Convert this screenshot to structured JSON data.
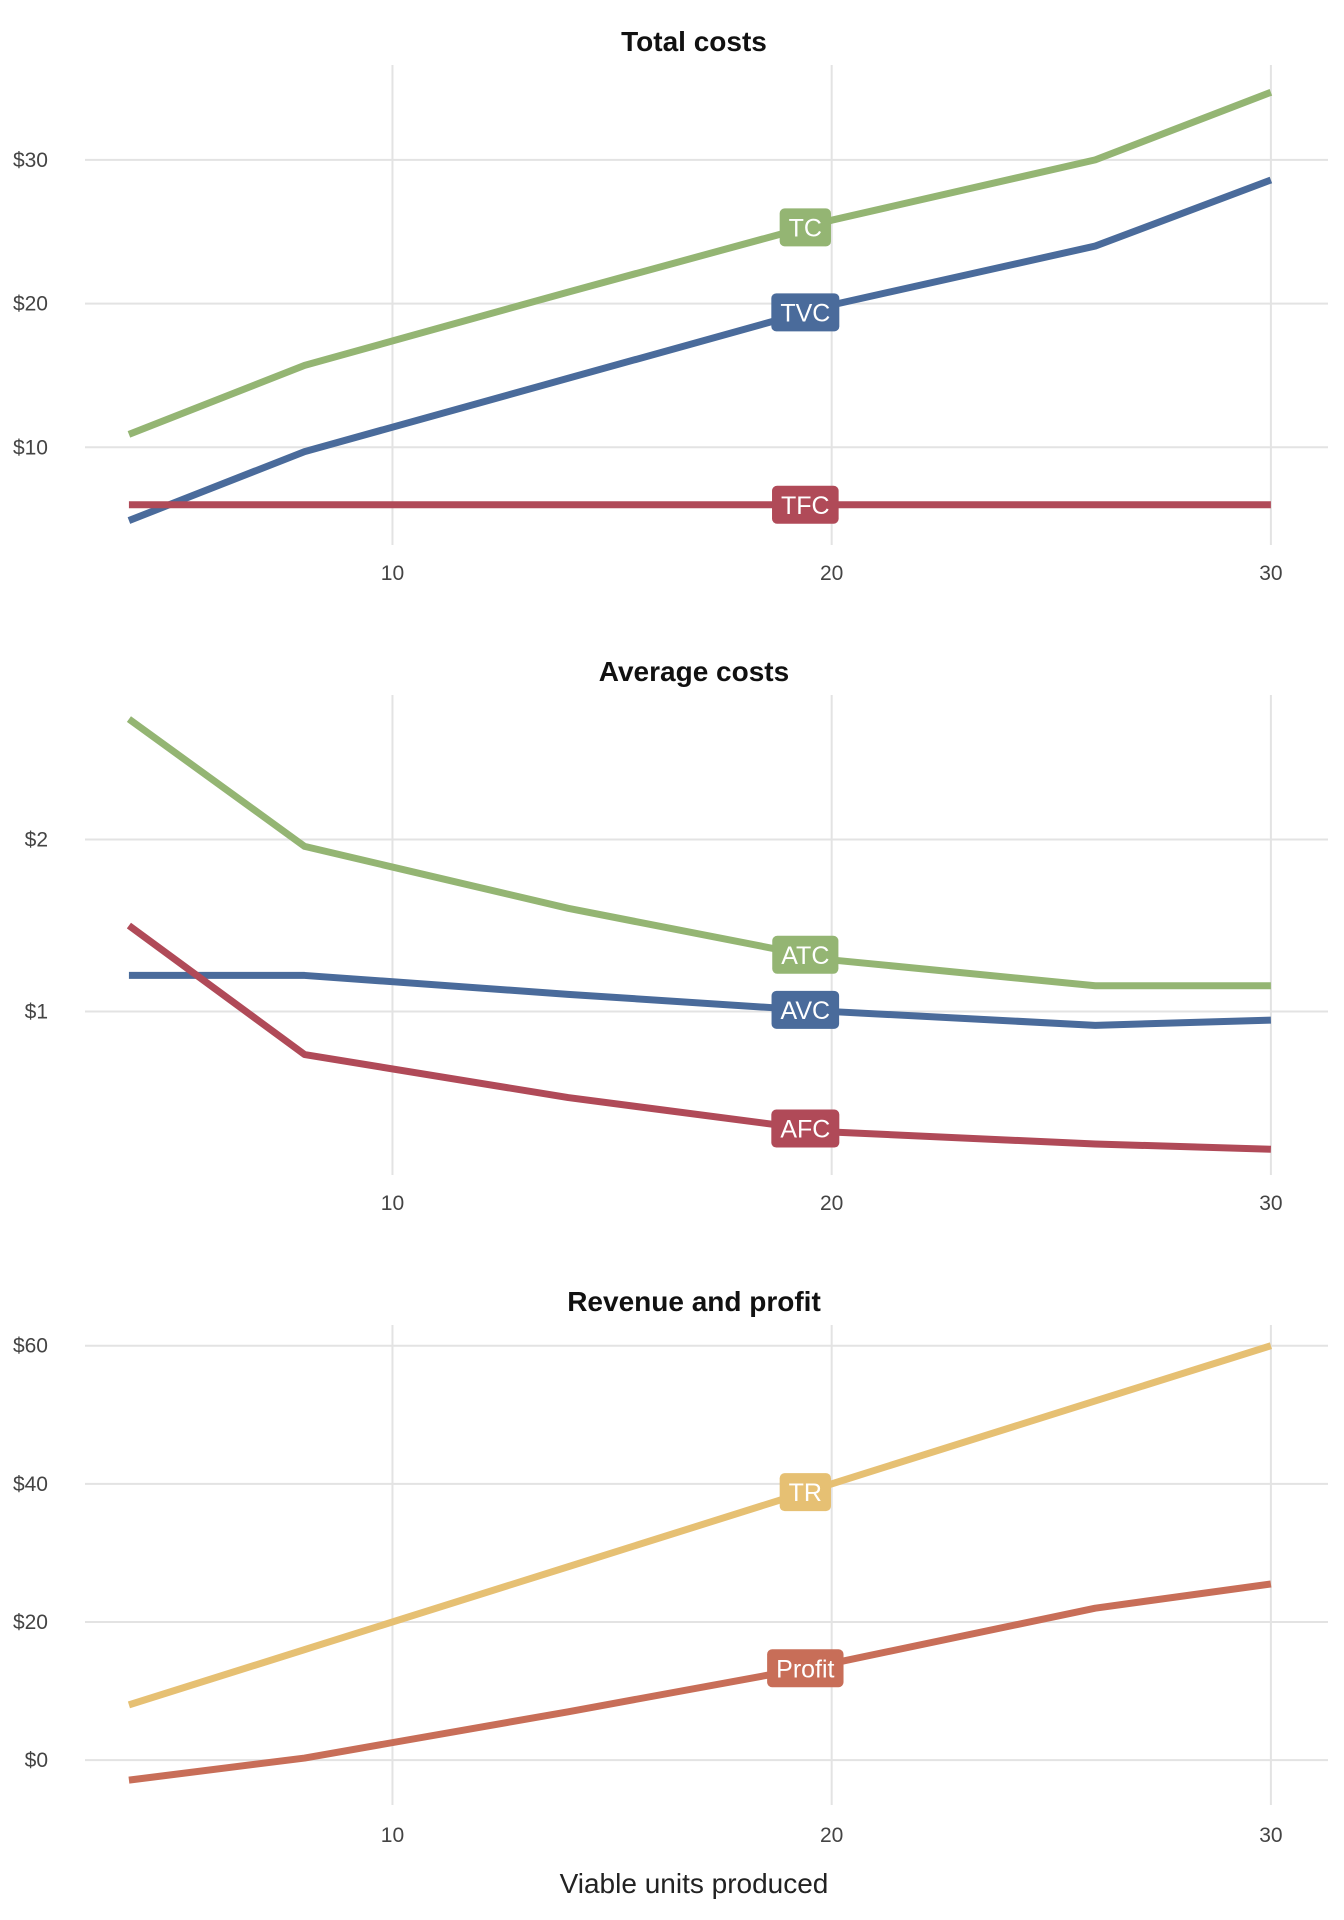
{
  "xlabel": "Viable units produced",
  "colors": {
    "green": "#94b573",
    "blue": "#4a6b9b",
    "red": "#b04a58",
    "yellow": "#e6c073",
    "orange": "#c86e58"
  },
  "chart_data": [
    {
      "type": "line",
      "title": "Total costs",
      "xlim": [
        3,
        31.3
      ],
      "ylim": [
        3.2,
        36.6
      ],
      "xticks": [
        10,
        20,
        30
      ],
      "xtick_labels": [
        "10",
        "20",
        "30"
      ],
      "yticks": [
        10,
        20,
        30
      ],
      "ytick_labels": [
        "$10",
        "$20",
        "$30"
      ],
      "series": [
        {
          "name": "TC",
          "color": "#94b573",
          "x": [
            4,
            8,
            14,
            20,
            26,
            30
          ],
          "y": [
            10.9,
            15.7,
            20.8,
            25.8,
            30.0,
            34.7
          ],
          "label_x": 19.4
        },
        {
          "name": "TVC",
          "color": "#4a6b9b",
          "x": [
            4,
            8,
            14,
            20,
            26,
            30
          ],
          "y": [
            4.9,
            9.7,
            14.8,
            19.9,
            24.0,
            28.6
          ],
          "label_x": 19.4
        },
        {
          "name": "TFC",
          "color": "#b04a58",
          "x": [
            4,
            8,
            14,
            20,
            26,
            30
          ],
          "y": [
            6.0,
            6.0,
            6.0,
            6.0,
            6.0,
            6.0
          ],
          "label_x": 19.4
        }
      ]
    },
    {
      "type": "line",
      "title": "Average costs",
      "xlim": [
        3,
        31.3
      ],
      "ylim": [
        0.05,
        2.84
      ],
      "xticks": [
        10,
        20,
        30
      ],
      "xtick_labels": [
        "10",
        "20",
        "30"
      ],
      "yticks": [
        1,
        2
      ],
      "ytick_labels": [
        "$1",
        "$2"
      ],
      "series": [
        {
          "name": "ATC",
          "color": "#94b573",
          "x": [
            4,
            8,
            14,
            20,
            26,
            30
          ],
          "y": [
            2.7,
            1.96,
            1.6,
            1.3,
            1.15,
            1.15
          ],
          "label_x": 19.4
        },
        {
          "name": "AVC",
          "color": "#4a6b9b",
          "x": [
            4,
            8,
            14,
            20,
            26,
            30
          ],
          "y": [
            1.21,
            1.21,
            1.1,
            1.0,
            0.92,
            0.95
          ],
          "label_x": 19.4
        },
        {
          "name": "AFC",
          "color": "#b04a58",
          "x": [
            4,
            8,
            14,
            20,
            26,
            30
          ],
          "y": [
            1.5,
            0.75,
            0.5,
            0.3,
            0.23,
            0.2
          ],
          "label_x": 19.4
        }
      ]
    },
    {
      "type": "line",
      "title": "Revenue and profit",
      "xlim": [
        3,
        31.3
      ],
      "ylim": [
        -6.5,
        63
      ],
      "xticks": [
        10,
        20,
        30
      ],
      "xtick_labels": [
        "10",
        "20",
        "30"
      ],
      "yticks": [
        0,
        20,
        40,
        60
      ],
      "ytick_labels": [
        "$0",
        "$20",
        "$40",
        "$60"
      ],
      "series": [
        {
          "name": "TR",
          "color": "#e6c073",
          "x": [
            4,
            8,
            14,
            20,
            26,
            30
          ],
          "y": [
            8,
            16,
            28,
            40,
            52,
            60
          ],
          "label_x": 19.4
        },
        {
          "name": "Profit",
          "color": "#c86e58",
          "x": [
            4,
            8,
            14,
            20,
            26,
            30
          ],
          "y": [
            -2.9,
            0.3,
            7.0,
            14.0,
            22.0,
            25.5
          ],
          "label_x": 19.4
        }
      ]
    }
  ]
}
